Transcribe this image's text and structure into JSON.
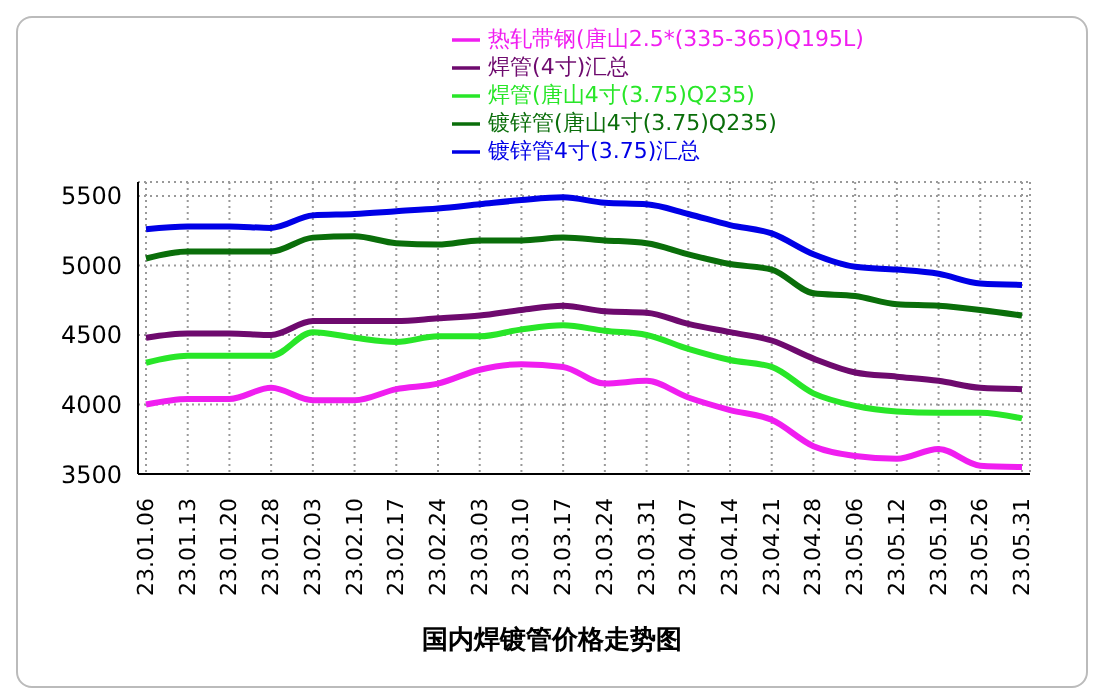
{
  "chart_data": {
    "type": "line",
    "title": "国内焊镀管价格走势图",
    "categories": [
      "23.01.06",
      "23.01.13",
      "23.01.20",
      "23.01.28",
      "23.02.03",
      "23.02.10",
      "23.02.17",
      "23.02.24",
      "23.03.03",
      "23.03.10",
      "23.03.17",
      "23.03.24",
      "23.03.31",
      "23.04.07",
      "23.04.14",
      "23.04.21",
      "23.04.28",
      "23.05.06",
      "23.05.12",
      "23.05.19",
      "23.05.26",
      "23.05.31"
    ],
    "series": [
      {
        "name": "镀锌管(唐山4寸(3.75)Q235)",
        "color": "#0a6e0a",
        "values": [
          5050,
          5100,
          5100,
          5100,
          5200,
          5210,
          5160,
          5150,
          5180,
          5180,
          5200,
          5180,
          5160,
          5080,
          5010,
          4970,
          4800,
          4780,
          4720,
          4710,
          4680,
          4640
        ]
      },
      {
        "name": "镀锌管4寸(3.75)汇总",
        "color": "#0000e6",
        "values": [
          5260,
          5280,
          5280,
          5270,
          5360,
          5370,
          5390,
          5410,
          5440,
          5470,
          5490,
          5450,
          5440,
          5370,
          5290,
          5230,
          5080,
          4990,
          4970,
          4940,
          4870,
          4860
        ]
      },
      {
        "name": "焊管(4寸)汇总",
        "color": "#6e0a6e",
        "values": [
          4480,
          4510,
          4510,
          4500,
          4600,
          4600,
          4600,
          4620,
          4640,
          4680,
          4710,
          4670,
          4660,
          4580,
          4520,
          4460,
          4330,
          4230,
          4200,
          4170,
          4120,
          4110
        ]
      },
      {
        "name": "焊管(唐山4寸(3.75)Q235)",
        "color": "#28e628",
        "values": [
          4300,
          4350,
          4350,
          4350,
          4520,
          4480,
          4450,
          4490,
          4490,
          4540,
          4570,
          4530,
          4500,
          4400,
          4320,
          4270,
          4080,
          3990,
          3950,
          3940,
          3940,
          3900
        ]
      },
      {
        "name": "热轧带钢(唐山2.5*(335-365)Q195L)",
        "color": "#f01ef0",
        "values": [
          4000,
          4040,
          4040,
          4120,
          4030,
          4030,
          4110,
          4150,
          4250,
          4290,
          4270,
          4150,
          4170,
          4050,
          3960,
          3890,
          3700,
          3630,
          3610,
          3680,
          3560,
          3550
        ]
      }
    ],
    "ylim": [
      3500,
      5600
    ],
    "yticks": [
      3500,
      4000,
      4500,
      5000,
      5500
    ],
    "grid": true,
    "legend": "top",
    "marker": "none",
    "line_style": "solid"
  }
}
